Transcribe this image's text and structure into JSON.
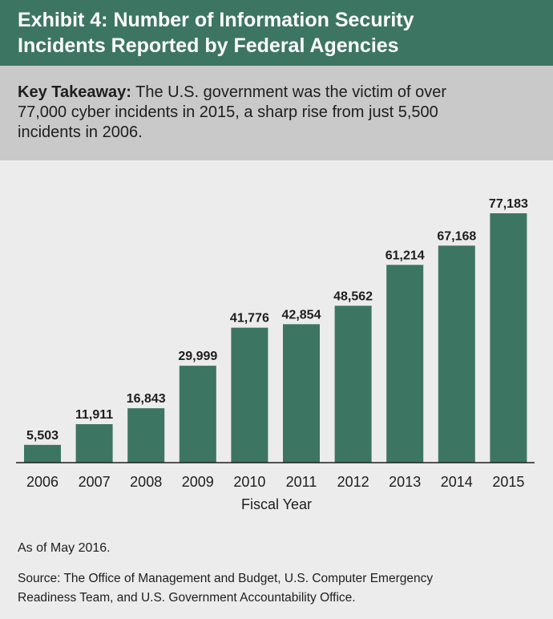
{
  "header": {
    "title_lines": [
      "Exhibit 4: Number of Information Security",
      "Incidents Reported by Federal Agencies"
    ]
  },
  "takeaway": {
    "label": "Key Takeaway:",
    "line1": "The U.S. government was the victim of over",
    "line2": "77,000 cyber incidents in 2015, a sharp rise from just 5,500",
    "line3": "incidents in 2006."
  },
  "colors": {
    "header_bg": "#3d7563",
    "bar": "#3d7563",
    "takeaway_bg": "#c9c9c9",
    "page_bg": "#ececec"
  },
  "chart_data": {
    "type": "bar",
    "categories": [
      "2006",
      "2007",
      "2008",
      "2009",
      "2010",
      "2011",
      "2012",
      "2013",
      "2014",
      "2015"
    ],
    "values": [
      5503,
      11911,
      16843,
      29999,
      41776,
      42854,
      48562,
      61214,
      67168,
      77183
    ],
    "value_labels": [
      "5,503",
      "11,911",
      "16,843",
      "29,999",
      "41,776",
      "42,854",
      "48,562",
      "61,214",
      "67,168",
      "77,183"
    ],
    "xlabel": "Fiscal Year",
    "ylabel": "",
    "ylim": [
      0,
      77183
    ],
    "grid": false,
    "legend": "none"
  },
  "footer": {
    "note": "As of May 2016.",
    "source_line1": "Source: The Office of Management and Budget, U.S. Computer Emergency",
    "source_line2": "Readiness Team, and U.S. Government Accountability Office."
  }
}
